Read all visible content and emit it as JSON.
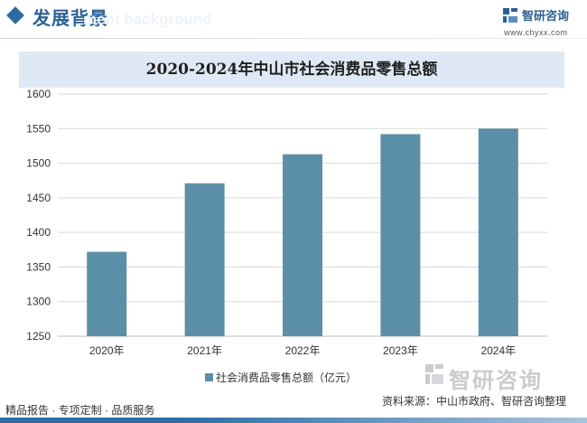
{
  "header": {
    "title": "发展背景",
    "subtitle": "ment background"
  },
  "brand": {
    "name": "智研咨询",
    "url": "www.chyxx.com"
  },
  "watermark": {
    "text": "智研咨询"
  },
  "footer": {
    "tags": "精品报告 · 专项定制 · 品质服务",
    "source": "资料来源：中山市政府、智研咨询整理"
  },
  "colors": {
    "bar": "#5b8fa8",
    "accent": "#2b6ca3",
    "title_band": "#dfe9f5",
    "grid": "#d9d9d9"
  },
  "chart_data": {
    "type": "bar",
    "title": "2020-2024年中山市社会消费品零售总额",
    "categories": [
      "2020年",
      "2021年",
      "2022年",
      "2023年",
      "2024年"
    ],
    "series": [
      {
        "name": "社会消费品零售总额（亿元）",
        "values": [
          1372,
          1471,
          1513,
          1542,
          1550
        ]
      }
    ],
    "ylim": [
      1250,
      1600
    ],
    "yticks": [
      1250,
      1300,
      1350,
      1400,
      1450,
      1500,
      1550,
      1600
    ],
    "xlabel": "",
    "ylabel": "",
    "grid": true,
    "legend": "bottom"
  }
}
